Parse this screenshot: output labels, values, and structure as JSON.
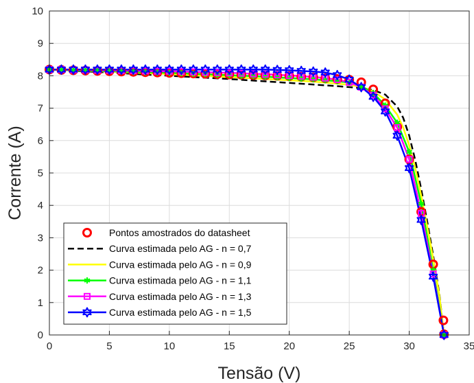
{
  "chart_data": {
    "type": "line",
    "xlabel": "Tensão (V)",
    "ylabel": "Corrente (A)",
    "xlim": [
      0,
      35
    ],
    "ylim": [
      0,
      10
    ],
    "xticks": [
      0,
      5,
      10,
      15,
      20,
      25,
      30,
      35
    ],
    "yticks": [
      0,
      1,
      2,
      3,
      4,
      5,
      6,
      7,
      8,
      9,
      10
    ],
    "grid": true,
    "legend_position": "lower-left",
    "series": [
      {
        "name": "Pontos amostrados do datasheet",
        "style": "markers",
        "marker": "circle",
        "color": "#ff0000",
        "x": [
          0,
          1,
          2,
          3,
          4,
          5,
          6,
          7,
          8,
          9,
          10,
          11,
          12,
          13,
          14,
          15,
          16,
          17,
          18,
          19,
          20,
          21,
          22,
          23,
          24,
          25,
          26,
          27,
          28,
          29,
          30,
          31,
          32,
          32.85,
          32.9
        ],
        "y": [
          8.19,
          8.18,
          8.17,
          8.16,
          8.15,
          8.14,
          8.13,
          8.12,
          8.11,
          8.1,
          8.09,
          8.08,
          8.07,
          8.06,
          8.05,
          8.04,
          8.03,
          8.02,
          8.01,
          8.0,
          7.99,
          7.97,
          7.95,
          7.92,
          7.9,
          7.88,
          7.8,
          7.58,
          7.15,
          6.42,
          5.42,
          3.8,
          2.18,
          0.45,
          0.02
        ]
      },
      {
        "name": "Curva estimada pelo AG - n = 0,7",
        "style": "dashed",
        "color": "#000000",
        "x": [
          0,
          5,
          10,
          15,
          20,
          22,
          24,
          25,
          26,
          27,
          28,
          29,
          29.5,
          30,
          30.5,
          31,
          31.5,
          32,
          32.5,
          32.9
        ],
        "y": [
          8.19,
          8.1,
          8.0,
          7.9,
          7.78,
          7.73,
          7.68,
          7.65,
          7.62,
          7.56,
          7.42,
          7.05,
          6.7,
          6.15,
          5.4,
          4.5,
          3.5,
          2.45,
          1.3,
          0.0
        ]
      },
      {
        "name": "Curva estimada pelo AG - n = 0,9",
        "style": "solid",
        "color": "#ffff00",
        "x": [
          0,
          5,
          10,
          15,
          20,
          22,
          24,
          25,
          26,
          27,
          28,
          29,
          29.5,
          30,
          30.5,
          31,
          31.5,
          32,
          32.5,
          32.9
        ],
        "y": [
          8.19,
          8.13,
          8.05,
          7.96,
          7.86,
          7.82,
          7.76,
          7.72,
          7.66,
          7.52,
          7.27,
          6.8,
          6.4,
          5.85,
          5.15,
          4.3,
          3.35,
          2.35,
          1.25,
          0.0
        ]
      },
      {
        "name": "Curva estimada pelo AG - n = 1,1",
        "style": "solid",
        "marker": "asterisk",
        "color": "#00ff00",
        "x": [
          0,
          1,
          2,
          3,
          4,
          5,
          6,
          7,
          8,
          9,
          10,
          11,
          12,
          13,
          14,
          15,
          16,
          17,
          18,
          19,
          20,
          21,
          22,
          23,
          24,
          25,
          26,
          27,
          28,
          29,
          30,
          31,
          32,
          32.9
        ],
        "y": [
          8.19,
          8.18,
          8.17,
          8.16,
          8.15,
          8.14,
          8.13,
          8.12,
          8.11,
          8.1,
          8.09,
          8.08,
          8.06,
          8.05,
          8.03,
          8.02,
          8.0,
          7.99,
          7.97,
          7.95,
          7.93,
          7.91,
          7.89,
          7.86,
          7.83,
          7.79,
          7.68,
          7.47,
          7.08,
          6.55,
          5.65,
          4.05,
          2.0,
          0.0
        ]
      },
      {
        "name": "Curva estimada pelo AG - n = 1,3",
        "style": "solid",
        "marker": "square",
        "color": "#ff00ff",
        "x": [
          0,
          1,
          2,
          3,
          4,
          5,
          6,
          7,
          8,
          9,
          10,
          11,
          12,
          13,
          14,
          15,
          16,
          17,
          18,
          19,
          20,
          21,
          22,
          23,
          24,
          25,
          26,
          27,
          28,
          29,
          30,
          31,
          32,
          32.9
        ],
        "y": [
          8.19,
          8.19,
          8.18,
          8.18,
          8.17,
          8.17,
          8.16,
          8.16,
          8.15,
          8.14,
          8.14,
          8.13,
          8.12,
          8.11,
          8.1,
          8.09,
          8.08,
          8.06,
          8.05,
          8.03,
          8.01,
          7.99,
          7.96,
          7.93,
          7.88,
          7.8,
          7.65,
          7.4,
          6.98,
          6.4,
          5.42,
          3.75,
          1.88,
          0.0
        ]
      },
      {
        "name": "Curva estimada pelo AG - n = 1,5",
        "style": "solid",
        "marker": "hexagram",
        "color": "#0000ff",
        "x": [
          0,
          1,
          2,
          3,
          4,
          5,
          6,
          7,
          8,
          9,
          10,
          11,
          12,
          13,
          14,
          15,
          16,
          17,
          18,
          19,
          20,
          21,
          22,
          23,
          24,
          25,
          26,
          27,
          28,
          29,
          30,
          31,
          32,
          32.9
        ],
        "y": [
          8.19,
          8.19,
          8.19,
          8.19,
          8.19,
          8.19,
          8.19,
          8.19,
          8.19,
          8.19,
          8.19,
          8.19,
          8.19,
          8.19,
          8.19,
          8.19,
          8.19,
          8.19,
          8.19,
          8.18,
          8.17,
          8.15,
          8.13,
          8.1,
          8.02,
          7.88,
          7.65,
          7.35,
          6.9,
          6.15,
          5.15,
          3.55,
          1.8,
          0.0
        ]
      }
    ]
  }
}
